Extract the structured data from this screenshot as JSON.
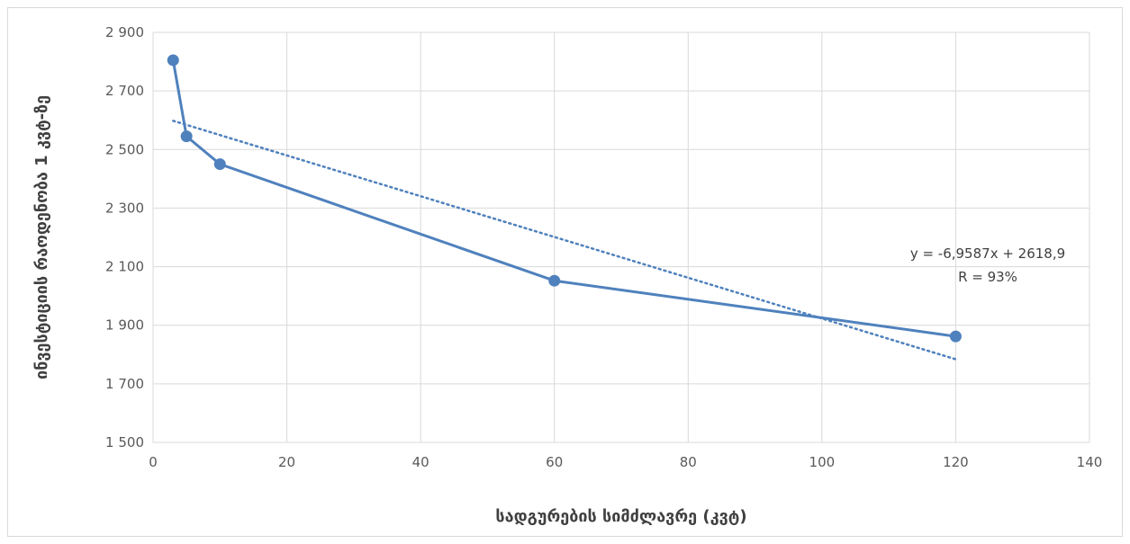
{
  "chart_data": {
    "type": "line",
    "title": "",
    "xlabel": "სადგურების სიმძლავრე (კვტ)",
    "ylabel": "ინვესტიციის რაოდენობა 1 კვტ-ზე",
    "xlim": [
      0,
      140
    ],
    "ylim": [
      1500,
      2900
    ],
    "x_ticks": [
      0,
      20,
      40,
      60,
      80,
      100,
      120,
      140
    ],
    "y_ticks": [
      1500,
      1700,
      1900,
      2100,
      2300,
      2500,
      2700,
      2900
    ],
    "x_tick_labels": [
      "0",
      "20",
      "40",
      "60",
      "80",
      "100",
      "120",
      "140"
    ],
    "y_tick_labels": [
      "1 500",
      "1 700",
      "1 900",
      "2 100",
      "2 300",
      "2 500",
      "2 700",
      "2 900"
    ],
    "grid": "vertical and horizontal",
    "legend": "none",
    "series": [
      {
        "x": [
          3,
          5,
          10,
          60,
          120
        ],
        "y": [
          2805,
          2545,
          2450,
          2052,
          1862
        ],
        "color": "#4f81bd",
        "markers": true
      }
    ],
    "trendline": {
      "kind": "linear",
      "slope": -6.9587,
      "intercept": 2618.9,
      "x_range": [
        3,
        120
      ],
      "style": "dotted",
      "color": "#4f81bd",
      "equation_label": "y = -6,9587x + 2618,9",
      "r_label": "R = 93%"
    }
  }
}
